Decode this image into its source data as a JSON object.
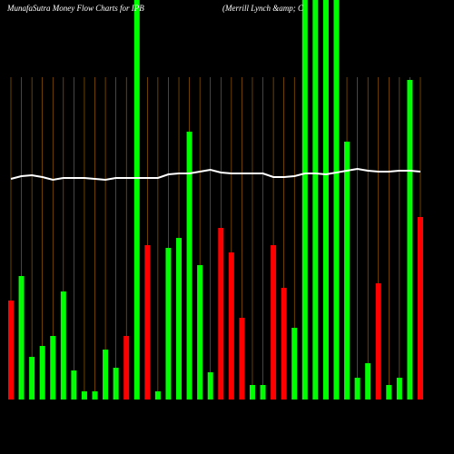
{
  "chart_data": {
    "type": "bar",
    "title": "MunafaSutra  Money Flow  Charts for IPB",
    "subtitle": "(Merrill Lynch &amp; C",
    "categories": [
      null,
      null,
      null,
      null,
      null,
      null,
      null,
      null,
      null,
      null,
      null,
      null,
      null,
      null,
      null,
      null,
      null,
      null,
      null,
      null,
      null,
      null,
      null,
      null,
      null,
      null,
      null,
      null,
      null,
      null,
      null,
      null,
      null,
      null,
      null,
      null,
      null,
      null,
      null,
      null
    ],
    "series": [
      {
        "type": "bar",
        "values": [
          109,
          136,
          47,
          59,
          70,
          119,
          32,
          9,
          9,
          55,
          35,
          70,
          460,
          170,
          9,
          167,
          178,
          295,
          148,
          30,
          189,
          162,
          90,
          16,
          16,
          170,
          123,
          79,
          460,
          460,
          460,
          460,
          284,
          24,
          40,
          128,
          16,
          24,
          352,
          201
        ],
        "colors": [
          "#ff0000",
          "#00ff00",
          "#00ff00",
          "#00ff00",
          "#00ff00",
          "#00ff00",
          "#00ff00",
          "#00ff00",
          "#00ff00",
          "#00ff00",
          "#00ff00",
          "#ff0000",
          "#00ff00",
          "#ff0000",
          "#00ff00",
          "#00ff00",
          "#00ff00",
          "#00ff00",
          "#00ff00",
          "#00ff00",
          "#ff0000",
          "#ff0000",
          "#ff0000",
          "#00ff00",
          "#00ff00",
          "#ff0000",
          "#ff0000",
          "#00ff00",
          "#00ff00",
          "#00ff00",
          "#00ff00",
          "#00ff00",
          "#00ff00",
          "#00ff00",
          "#00ff00",
          "#ff0000",
          "#00ff00",
          "#00ff00",
          "#00ff00",
          "#ff0000"
        ]
      },
      {
        "type": "line",
        "color": "#ffffff",
        "values": [
          243,
          246,
          247,
          245,
          242,
          244,
          244,
          244,
          243,
          242,
          244,
          244,
          244,
          244,
          244,
          248,
          249,
          249,
          251,
          253,
          250,
          249,
          249,
          249,
          249,
          245,
          245,
          246,
          249,
          249,
          248,
          250,
          252,
          254,
          252,
          251,
          251,
          252,
          252,
          251
        ]
      }
    ],
    "ylim": [
      0,
      440
    ],
    "grid_color": "#b36b00"
  }
}
